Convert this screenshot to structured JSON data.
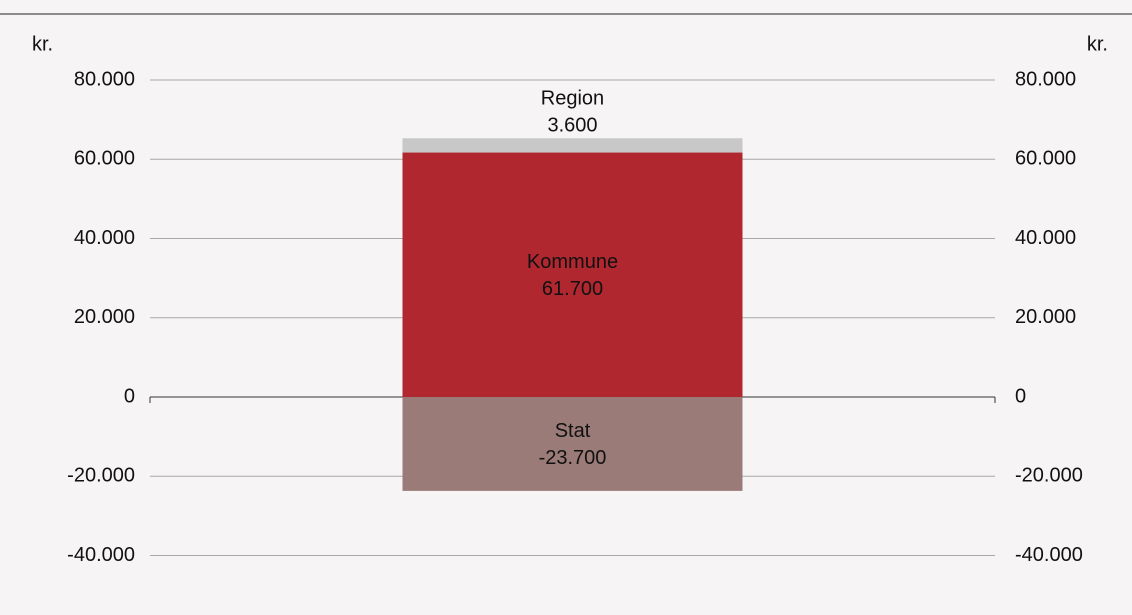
{
  "chart_data": {
    "type": "stacked_bar",
    "y_label": "kr.",
    "y2_label": "kr.",
    "categories": [
      null
    ],
    "series": [
      {
        "name": "Kommune",
        "color": "#b0272f",
        "values": [
          61700
        ],
        "value_labels": [
          "61.700"
        ]
      },
      {
        "name": "Region",
        "color": "#c8c8c8",
        "values": [
          3600
        ],
        "value_labels": [
          "3.600"
        ]
      },
      {
        "name": "Stat",
        "color": "#9a7b77",
        "values": [
          -23700
        ],
        "value_labels": [
          "-23.700"
        ]
      }
    ],
    "ylim": [
      -50000,
      90000
    ],
    "yticks": [
      {
        "value": -40000,
        "label": "-40.000"
      },
      {
        "value": -20000,
        "label": "-20.000"
      },
      0,
      {
        "value": 20000,
        "label": "20.000"
      },
      {
        "value": 40000,
        "label": "40.000"
      },
      {
        "value": 60000,
        "label": "60.000"
      },
      {
        "value": 80000,
        "label": "80.000"
      }
    ],
    "grid": true
  }
}
